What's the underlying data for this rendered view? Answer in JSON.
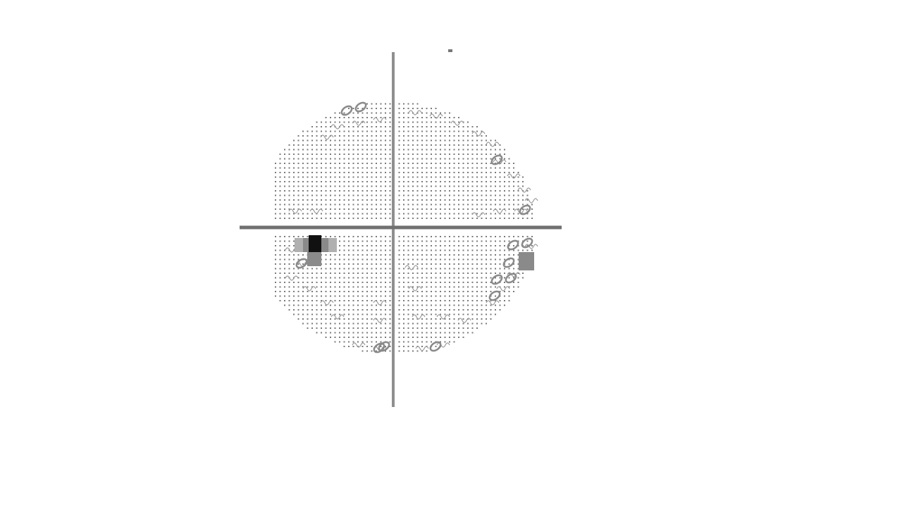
{
  "figure": {
    "kind": "visual-field-grayscale-map",
    "background_color": "#ffffff",
    "axis_color": "#8f8f8f",
    "dot_color": "#7a7a7a",
    "wave_color": "#9a9a9a",
    "dark_cell_color": "#111111",
    "mid_cell_color": "#8a8a8a",
    "light_cell_color": "#b0b0b0",
    "regions": [
      {
        "quadrant": "superior-nasal",
        "pattern": "dots"
      },
      {
        "quadrant": "superior-temporal",
        "pattern": "dots"
      },
      {
        "quadrant": "inferior-nasal",
        "pattern": "dots",
        "defect": "dense-scotoma"
      },
      {
        "quadrant": "inferior-temporal",
        "pattern": "dots",
        "defect": "peripheral-depression"
      }
    ]
  }
}
